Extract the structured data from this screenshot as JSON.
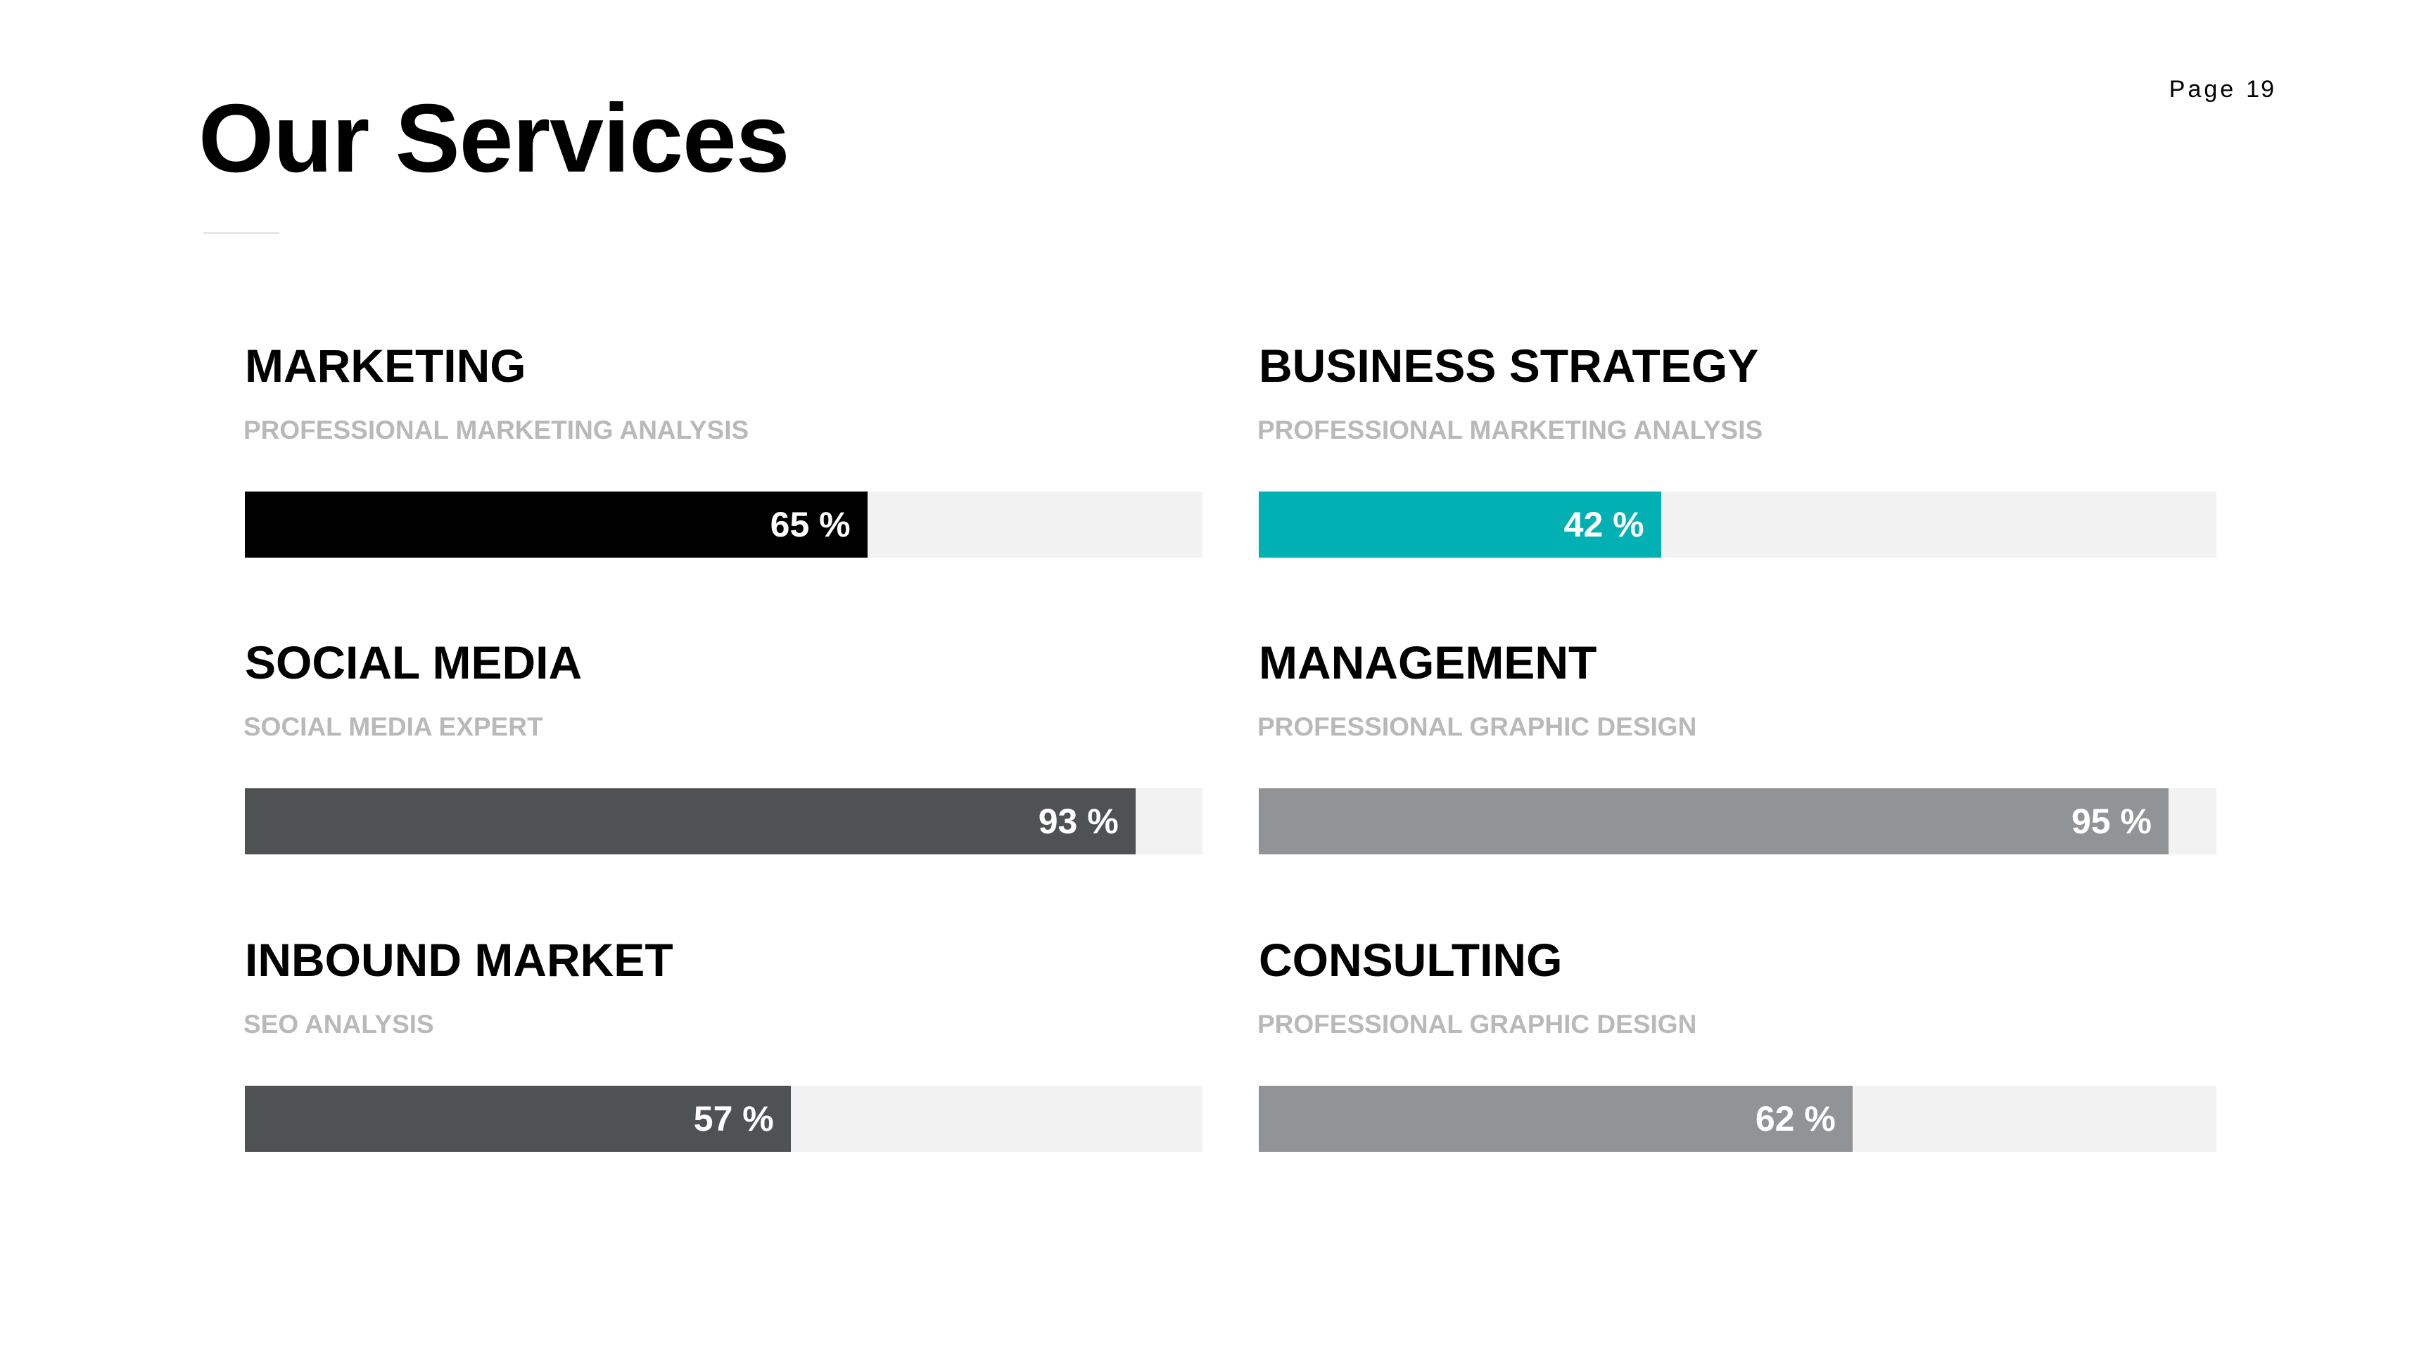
{
  "header": {
    "page_label": "Page",
    "page_number": "19",
    "title": "Our Services"
  },
  "services": [
    {
      "name": "MARKETING",
      "subtitle": "PROFESSIONAL MARKETING ANALYSIS",
      "percent": 65,
      "value_label": "65 %",
      "color": "#000000"
    },
    {
      "name": "BUSINESS STRATEGY",
      "subtitle": "PROFESSIONAL MARKETING ANALYSIS",
      "percent": 42,
      "value_label": "42 %",
      "color": "#00B0B3"
    },
    {
      "name": "SOCIAL MEDIA",
      "subtitle": "SOCIAL MEDIA EXPERT",
      "percent": 93,
      "value_label": "93 %",
      "color": "#4F5253"
    },
    {
      "name": "MANAGEMENT",
      "subtitle": "PROFESSIONAL GRAPHIC DESIGN",
      "percent": 95,
      "value_label": "95 %",
      "color": "#919496"
    },
    {
      "name": "INBOUND MARKET",
      "subtitle": "SEO ANALYSIS",
      "percent": 57,
      "value_label": "57 %",
      "color": "#4F5253"
    },
    {
      "name": "CONSULTING",
      "subtitle": "PROFESSIONAL GRAPHIC DESIGN",
      "percent": 62,
      "value_label": "62 %",
      "color": "#919496"
    }
  ],
  "track_color": "#F2F2F2"
}
